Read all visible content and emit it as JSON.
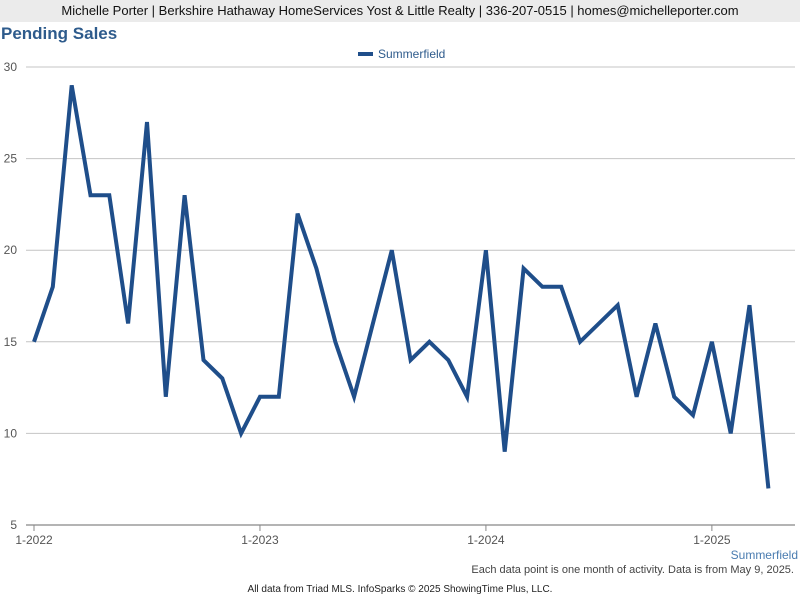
{
  "header": {
    "agent_line": "Michelle Porter | Berkshire Hathaway HomeServices Yost & Little Realty | 336-207-0515 | homes@michelleporter.com"
  },
  "chart_data": {
    "type": "line",
    "title": "Pending Sales",
    "series": [
      {
        "name": "Summerfield",
        "color": "#1f4e8a",
        "values": [
          15,
          18,
          29,
          23,
          23,
          16,
          27,
          12,
          23,
          14,
          13,
          10,
          12,
          12,
          22,
          19,
          15,
          12,
          16,
          20,
          14,
          15,
          14,
          12,
          20,
          9,
          19,
          18,
          18,
          15,
          16,
          17,
          12,
          16,
          12,
          11,
          15,
          10,
          17,
          7
        ]
      }
    ],
    "x_start": "1-2022",
    "x_tick_labels": [
      "1-2022",
      "1-2023",
      "1-2024",
      "1-2025"
    ],
    "y_ticks": [
      5,
      10,
      15,
      20,
      25,
      30
    ],
    "ylim": [
      5,
      30
    ],
    "legend_position": "top-center",
    "grid": "horizontal"
  },
  "footer": {
    "area_label": "Summerfield",
    "note": "Each data point is one month of activity. Data is from May 9, 2025.",
    "source": "All data from Triad MLS. InfoSparks © 2025 ShowingTime Plus, LLC."
  }
}
